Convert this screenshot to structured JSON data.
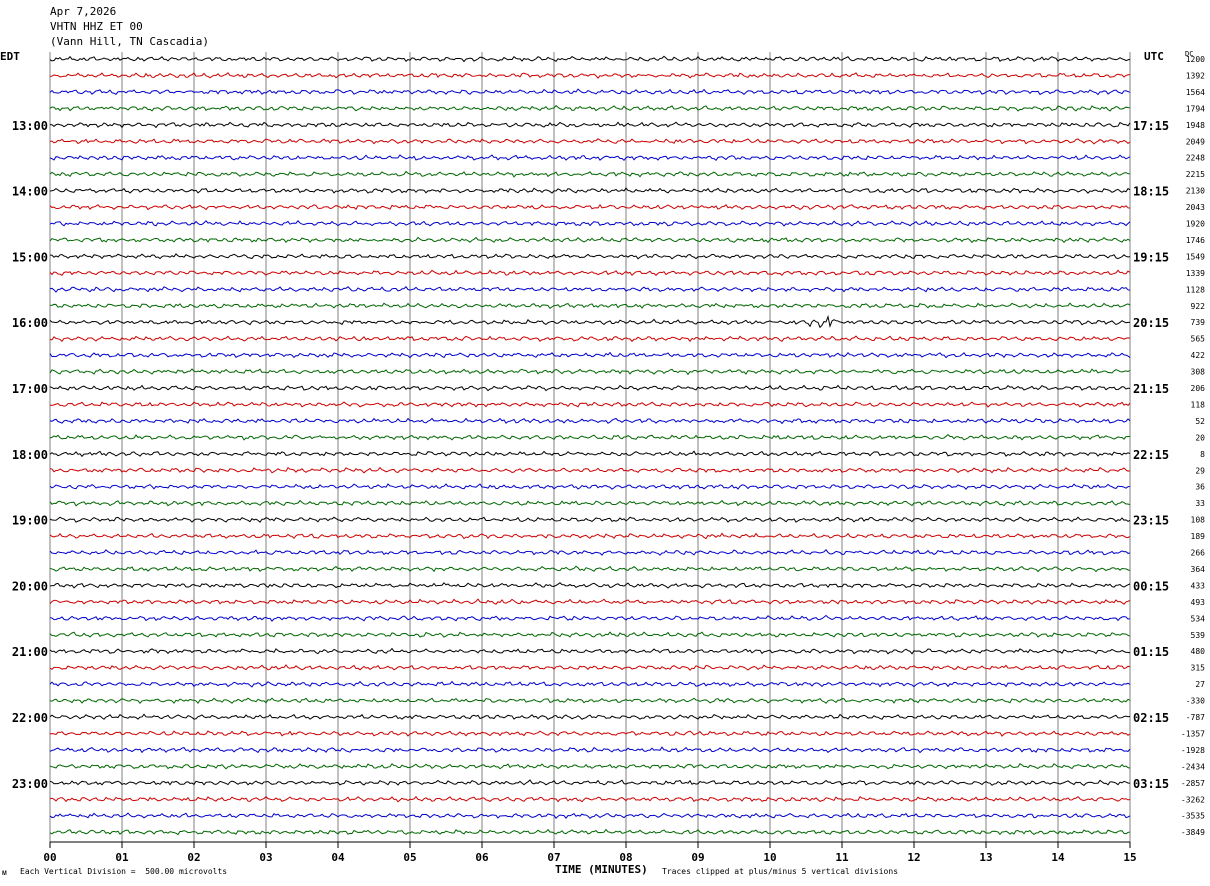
{
  "header": {
    "date": "Apr 7,2026",
    "station": "VHTN HHZ ET 00",
    "location": "(Vann Hill, TN Cascadia)"
  },
  "left_tz": "EDT",
  "right_tz": "UTC",
  "dc_label": "DC",
  "footer": {
    "left_glyph": "ᴍ",
    "scale_note": "Each Vertical Division =  500.00 microvolts",
    "xlabel": "TIME (MINUTES)",
    "clip_note": "Traces clipped at plus/minus 5 vertical divisions"
  },
  "colors": {
    "cycle": [
      "#000000",
      "#cc0000",
      "#0000cc",
      "#006600"
    ],
    "grid": "#808080"
  },
  "chart_data": {
    "type": "line",
    "title": "VHTN HHZ ET 00",
    "xlabel": "TIME (MINUTES)",
    "x_ticks": [
      "00",
      "01",
      "02",
      "03",
      "04",
      "05",
      "06",
      "07",
      "08",
      "09",
      "10",
      "11",
      "12",
      "13",
      "14",
      "15"
    ],
    "xlim": [
      0,
      15
    ],
    "minutes_per_trace": 15,
    "trace_count": 48,
    "left_hour_labels": [
      "13:00",
      "14:00",
      "15:00",
      "16:00",
      "17:00",
      "18:00",
      "19:00",
      "20:00",
      "21:00",
      "22:00",
      "23:00"
    ],
    "right_hour_labels": [
      "17:15",
      "18:15",
      "19:15",
      "20:15",
      "21:15",
      "22:15",
      "23:15",
      "00:15",
      "01:15",
      "02:15",
      "03:15"
    ],
    "dc_offsets": [
      1200,
      1392,
      1564,
      1794,
      1948,
      2049,
      2248,
      2215,
      2130,
      2043,
      1920,
      1746,
      1549,
      1339,
      1128,
      922,
      739,
      565,
      422,
      308,
      206,
      118,
      52,
      20,
      8,
      29,
      36,
      33,
      108,
      189,
      266,
      364,
      433,
      493,
      534,
      539,
      480,
      315,
      27,
      -330,
      -787,
      -1357,
      -1928,
      -2434,
      -2857,
      -3262,
      -3535,
      -3849
    ],
    "events": [
      {
        "trace": 16,
        "minute": 10.7,
        "description": "small burst"
      }
    ]
  }
}
